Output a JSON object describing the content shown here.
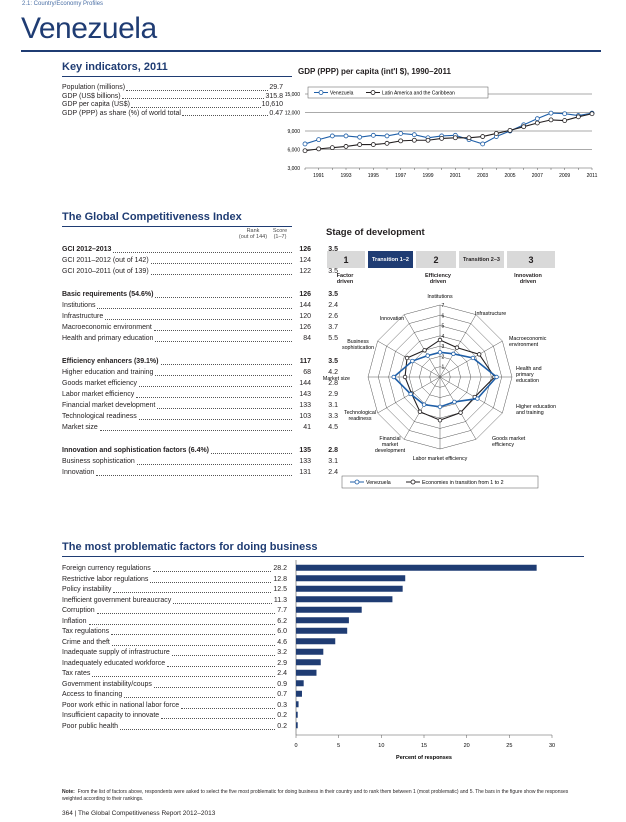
{
  "breadcrumb": "2.1: Country/Economy Profiles",
  "country": "Venezuela",
  "key_indicators": {
    "title": "Key indicators, 2011",
    "rows": [
      {
        "label": "Population (millions)",
        "value": "29.7"
      },
      {
        "label": "GDP (US$ billions)",
        "value": "315.8"
      },
      {
        "label": "GDP per capita (US$)",
        "value": "10,610"
      },
      {
        "label": "GDP (PPP) as share (%) of world total",
        "value": "0.47"
      }
    ]
  },
  "gdp_chart": {
    "title": "GDP (PPP) per capita (int'l $), 1990–2011",
    "colors": {
      "venezuela": "#1f5fa8",
      "latam": "#231f20"
    },
    "chart_data": {
      "type": "line",
      "x": [
        1990,
        1991,
        1992,
        1993,
        1994,
        1995,
        1996,
        1997,
        1998,
        1999,
        2000,
        2001,
        2002,
        2003,
        2004,
        2005,
        2006,
        2007,
        2008,
        2009,
        2010,
        2011
      ],
      "ylim": [
        3000,
        15000
      ],
      "yticks": [
        "3,000",
        "6,000",
        "9,000",
        "12,000",
        "15,000"
      ],
      "xticks": [
        "1991",
        "1993",
        "1995",
        "1997",
        "1999",
        "2001",
        "2003",
        "2005",
        "2007",
        "2009",
        "2011"
      ],
      "series": [
        {
          "name": "Venezuela",
          "values": [
            6900,
            7600,
            8200,
            8200,
            8000,
            8300,
            8200,
            8600,
            8400,
            7900,
            8200,
            8300,
            7600,
            6900,
            8100,
            9000,
            10000,
            11000,
            11900,
            11800,
            11500,
            11900
          ]
        },
        {
          "name": "Latin America and the Caribbean",
          "values": [
            5800,
            6100,
            6300,
            6500,
            6800,
            6800,
            7000,
            7400,
            7500,
            7500,
            7800,
            7900,
            7900,
            8100,
            8600,
            9100,
            9700,
            10300,
            10800,
            10700,
            11300,
            11800
          ]
        }
      ]
    }
  },
  "gci": {
    "title": "The Global Competitiveness Index",
    "rank_header": "Rank",
    "rank_sub": "(out of 144)",
    "score_header": "Score",
    "score_sub": "(1–7)",
    "rows": [
      {
        "label": "GCI 2012–2013",
        "rank": "126",
        "score": "3.5",
        "bold": true
      },
      {
        "label": "GCI 2011–2012 (out of 142)",
        "rank": "124",
        "score": "3.5",
        "bold": false
      },
      {
        "label": "GCI 2010–2011 (out of 139)",
        "rank": "122",
        "score": "3.5",
        "bold": false
      },
      {
        "label": "Basic requirements (54.6%)",
        "rank": "126",
        "score": "3.5",
        "bold": true
      },
      {
        "label": "Institutions",
        "rank": "144",
        "score": "2.4",
        "bold": false
      },
      {
        "label": "Infrastructure",
        "rank": "120",
        "score": "2.6",
        "bold": false
      },
      {
        "label": "Macroeconomic environment",
        "rank": "126",
        "score": "3.7",
        "bold": false
      },
      {
        "label": "Health and primary education",
        "rank": "84",
        "score": "5.5",
        "bold": false
      },
      {
        "label": "Efficiency enhancers (39.1%)",
        "rank": "117",
        "score": "3.5",
        "bold": true
      },
      {
        "label": "Higher education and training",
        "rank": "68",
        "score": "4.2",
        "bold": false
      },
      {
        "label": "Goods market efficiency",
        "rank": "144",
        "score": "2.8",
        "bold": false
      },
      {
        "label": "Labor market efficiency",
        "rank": "143",
        "score": "2.9",
        "bold": false
      },
      {
        "label": "Financial market development",
        "rank": "133",
        "score": "3.1",
        "bold": false
      },
      {
        "label": "Technological readiness",
        "rank": "103",
        "score": "3.3",
        "bold": false
      },
      {
        "label": "Market size",
        "rank": "41",
        "score": "4.5",
        "bold": false
      },
      {
        "label": "Innovation and sophistication factors (6.4%)",
        "rank": "135",
        "score": "2.8",
        "bold": true
      },
      {
        "label": "Business sophistication",
        "rank": "133",
        "score": "3.1",
        "bold": false
      },
      {
        "label": "Innovation",
        "rank": "131",
        "score": "2.4",
        "bold": false
      }
    ]
  },
  "stage": {
    "title": "Stage of development",
    "boxes": [
      {
        "label": "1",
        "active": false
      },
      {
        "label": "Transition 1–2",
        "active": true
      },
      {
        "label": "2",
        "active": false
      },
      {
        "label": "Transition 2–3",
        "active": false
      },
      {
        "label": "3",
        "active": false
      }
    ],
    "factor": "Factor driven",
    "efficiency": "Efficiency driven",
    "innovation": "Innovation driven"
  },
  "radar": {
    "colors": {
      "venezuela": "#1f5fa8",
      "transition": "#231f20"
    },
    "chart_data": {
      "type": "radar",
      "axes": [
        "Institutions",
        "Infrastructure",
        "Macroeconomic environment",
        "Health and primary education",
        "Higher education and training",
        "Goods market efficiency",
        "Labor market efficiency",
        "Financial market development",
        "Technological readiness",
        "Market size",
        "Business sophistication",
        "Innovation"
      ],
      "ticks": [
        "1",
        "2",
        "3",
        "4",
        "5",
        "6",
        "7"
      ],
      "range": [
        1,
        7
      ],
      "series": [
        {
          "name": "Venezuela",
          "values": [
            2.4,
            2.6,
            3.7,
            5.5,
            4.2,
            2.8,
            2.9,
            3.1,
            3.3,
            4.5,
            3.1,
            2.4
          ]
        },
        {
          "name": "Economies in transition from 1 to 2",
          "values": [
            3.6,
            3.3,
            4.4,
            5.3,
            3.9,
            4.0,
            4.2,
            3.9,
            3.2,
            3.4,
            3.7,
            3.0
          ]
        }
      ]
    }
  },
  "problems": {
    "title": "The most problematic factors for doing business",
    "bar_color": "#1f3c73",
    "chart_data": {
      "type": "bar",
      "orientation": "horizontal",
      "xlim": [
        0,
        30
      ],
      "xticks": [
        "0",
        "5",
        "10",
        "15",
        "20",
        "25",
        "30"
      ],
      "xlabel": "Percent of responses",
      "categories": [
        "Foreign currency regulations",
        "Restrictive labor regulations",
        "Policy instability",
        "Inefficient government bureaucracy",
        "Corruption",
        "Inflation",
        "Tax regulations",
        "Crime and theft",
        "Inadequate supply of infrastructure",
        "Inadequately educated workforce",
        "Tax rates",
        "Government instability/coups",
        "Access to financing",
        "Poor work ethic in national labor force",
        "Insufficient capacity to innovate",
        "Poor public health"
      ],
      "values": [
        28.2,
        12.8,
        12.5,
        11.3,
        7.7,
        6.2,
        6.0,
        4.6,
        3.2,
        2.9,
        2.4,
        0.9,
        0.7,
        0.3,
        0.2,
        0.2
      ],
      "labels": [
        "28.2",
        "12.8",
        "12.5",
        "11.3",
        "7.7",
        "6.2",
        "6.0",
        "4.6",
        "3.2",
        "2.9",
        "2.4",
        "0.9",
        "0.7",
        "0.3",
        "0.2",
        "0.2"
      ]
    }
  },
  "note_label": "Note:",
  "note_text": "From the list of factors above, respondents were asked to select the five most problematic for doing business in their country and to rank them between 1 (most problematic) and 5. The bars in the figure show the responses weighted according to their rankings.",
  "footer": "364 | The Global Competitiveness Report 2012–2013"
}
